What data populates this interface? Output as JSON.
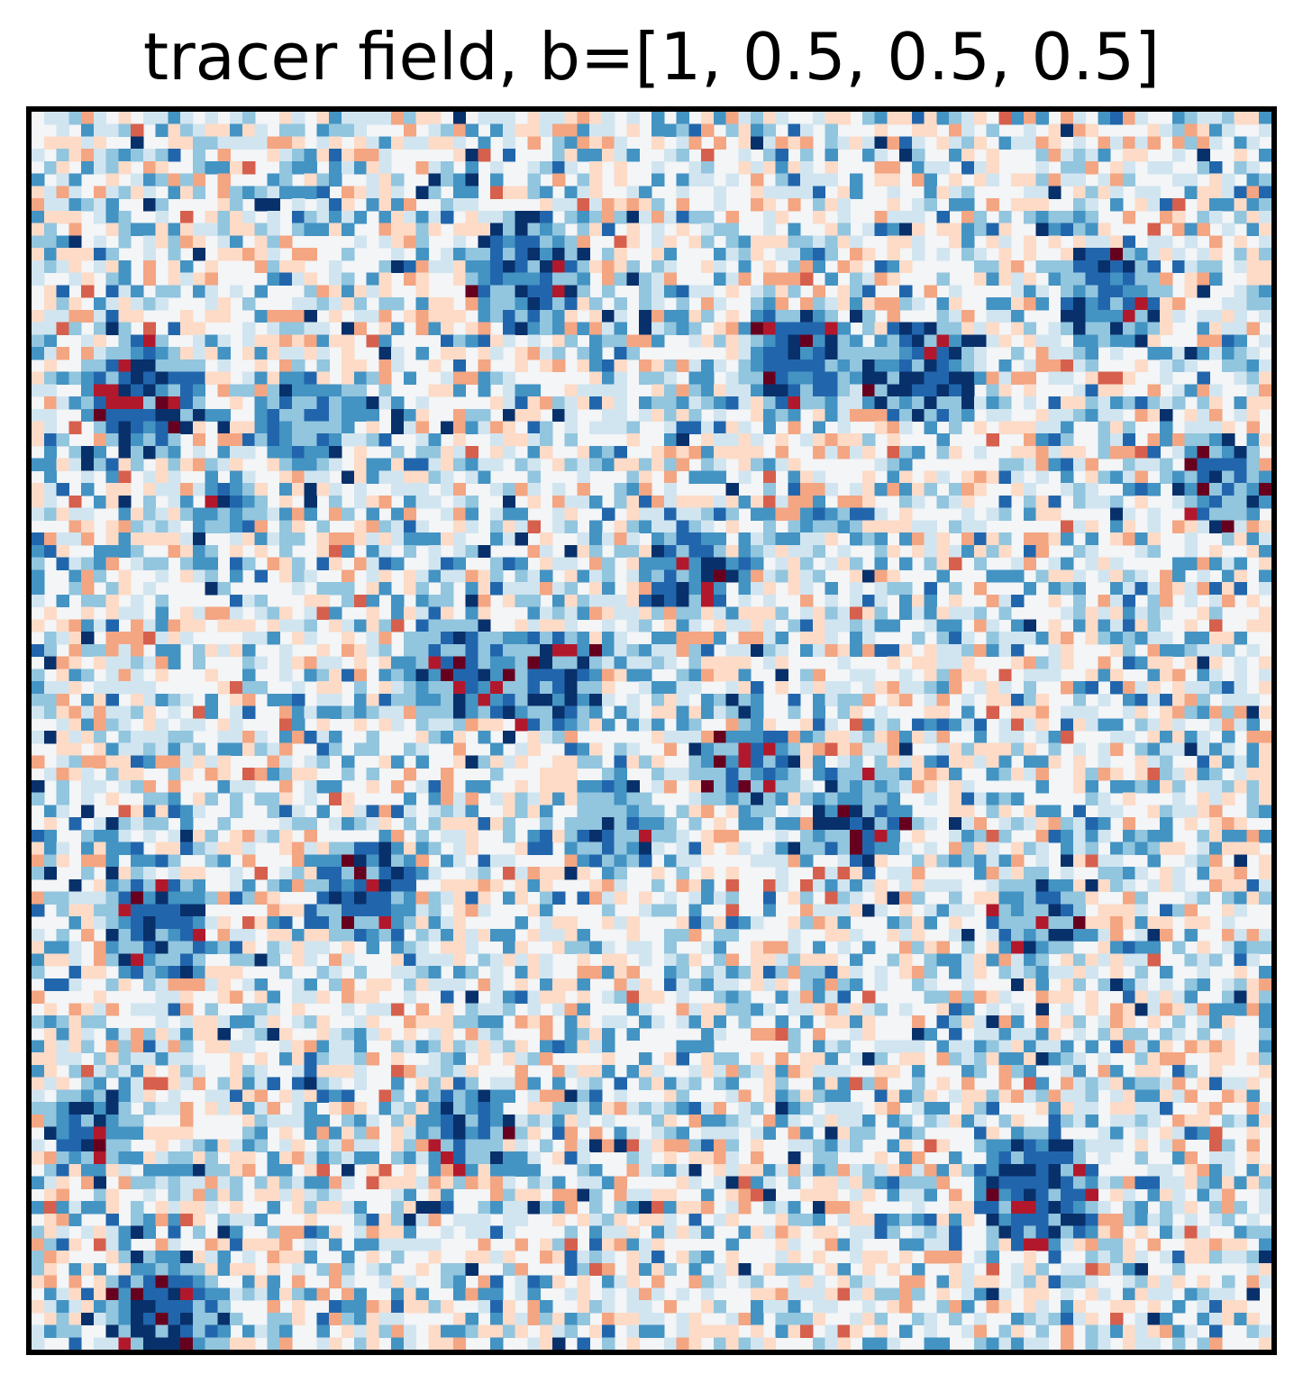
{
  "chart_data": {
    "type": "heatmap",
    "title": "tracer field, b=[1, 0.5, 0.5, 0.5]",
    "xlabel": "",
    "ylabel": "",
    "grid": false,
    "axes_ticks": false,
    "colormap": "RdBu",
    "colormap_stops": [
      "#08306b",
      "#2166ac",
      "#4393c3",
      "#92c5de",
      "#d1e5f0",
      "#f3f5f7",
      "#fddbc7",
      "#f4a582",
      "#d6604d",
      "#b2182b",
      "#67001f"
    ],
    "grid_size": 100,
    "clusters": [
      [
        0.09,
        0.23,
        4
      ],
      [
        0.4,
        0.13,
        4
      ],
      [
        0.62,
        0.2,
        3
      ],
      [
        0.72,
        0.21,
        3
      ],
      [
        0.87,
        0.15,
        3
      ],
      [
        0.96,
        0.3,
        2
      ],
      [
        0.53,
        0.37,
        2
      ],
      [
        0.42,
        0.46,
        3
      ],
      [
        0.34,
        0.45,
        3
      ],
      [
        0.58,
        0.53,
        2
      ],
      [
        0.67,
        0.57,
        2
      ],
      [
        0.27,
        0.63,
        3
      ],
      [
        0.1,
        0.66,
        3
      ],
      [
        0.81,
        0.65,
        2
      ],
      [
        0.81,
        0.87,
        5
      ],
      [
        0.11,
        0.97,
        4
      ],
      [
        0.22,
        0.25,
        2
      ],
      [
        0.47,
        0.58,
        2
      ],
      [
        0.35,
        0.82,
        2
      ],
      [
        0.16,
        0.32,
        1
      ],
      [
        0.05,
        0.82,
        2
      ]
    ]
  }
}
